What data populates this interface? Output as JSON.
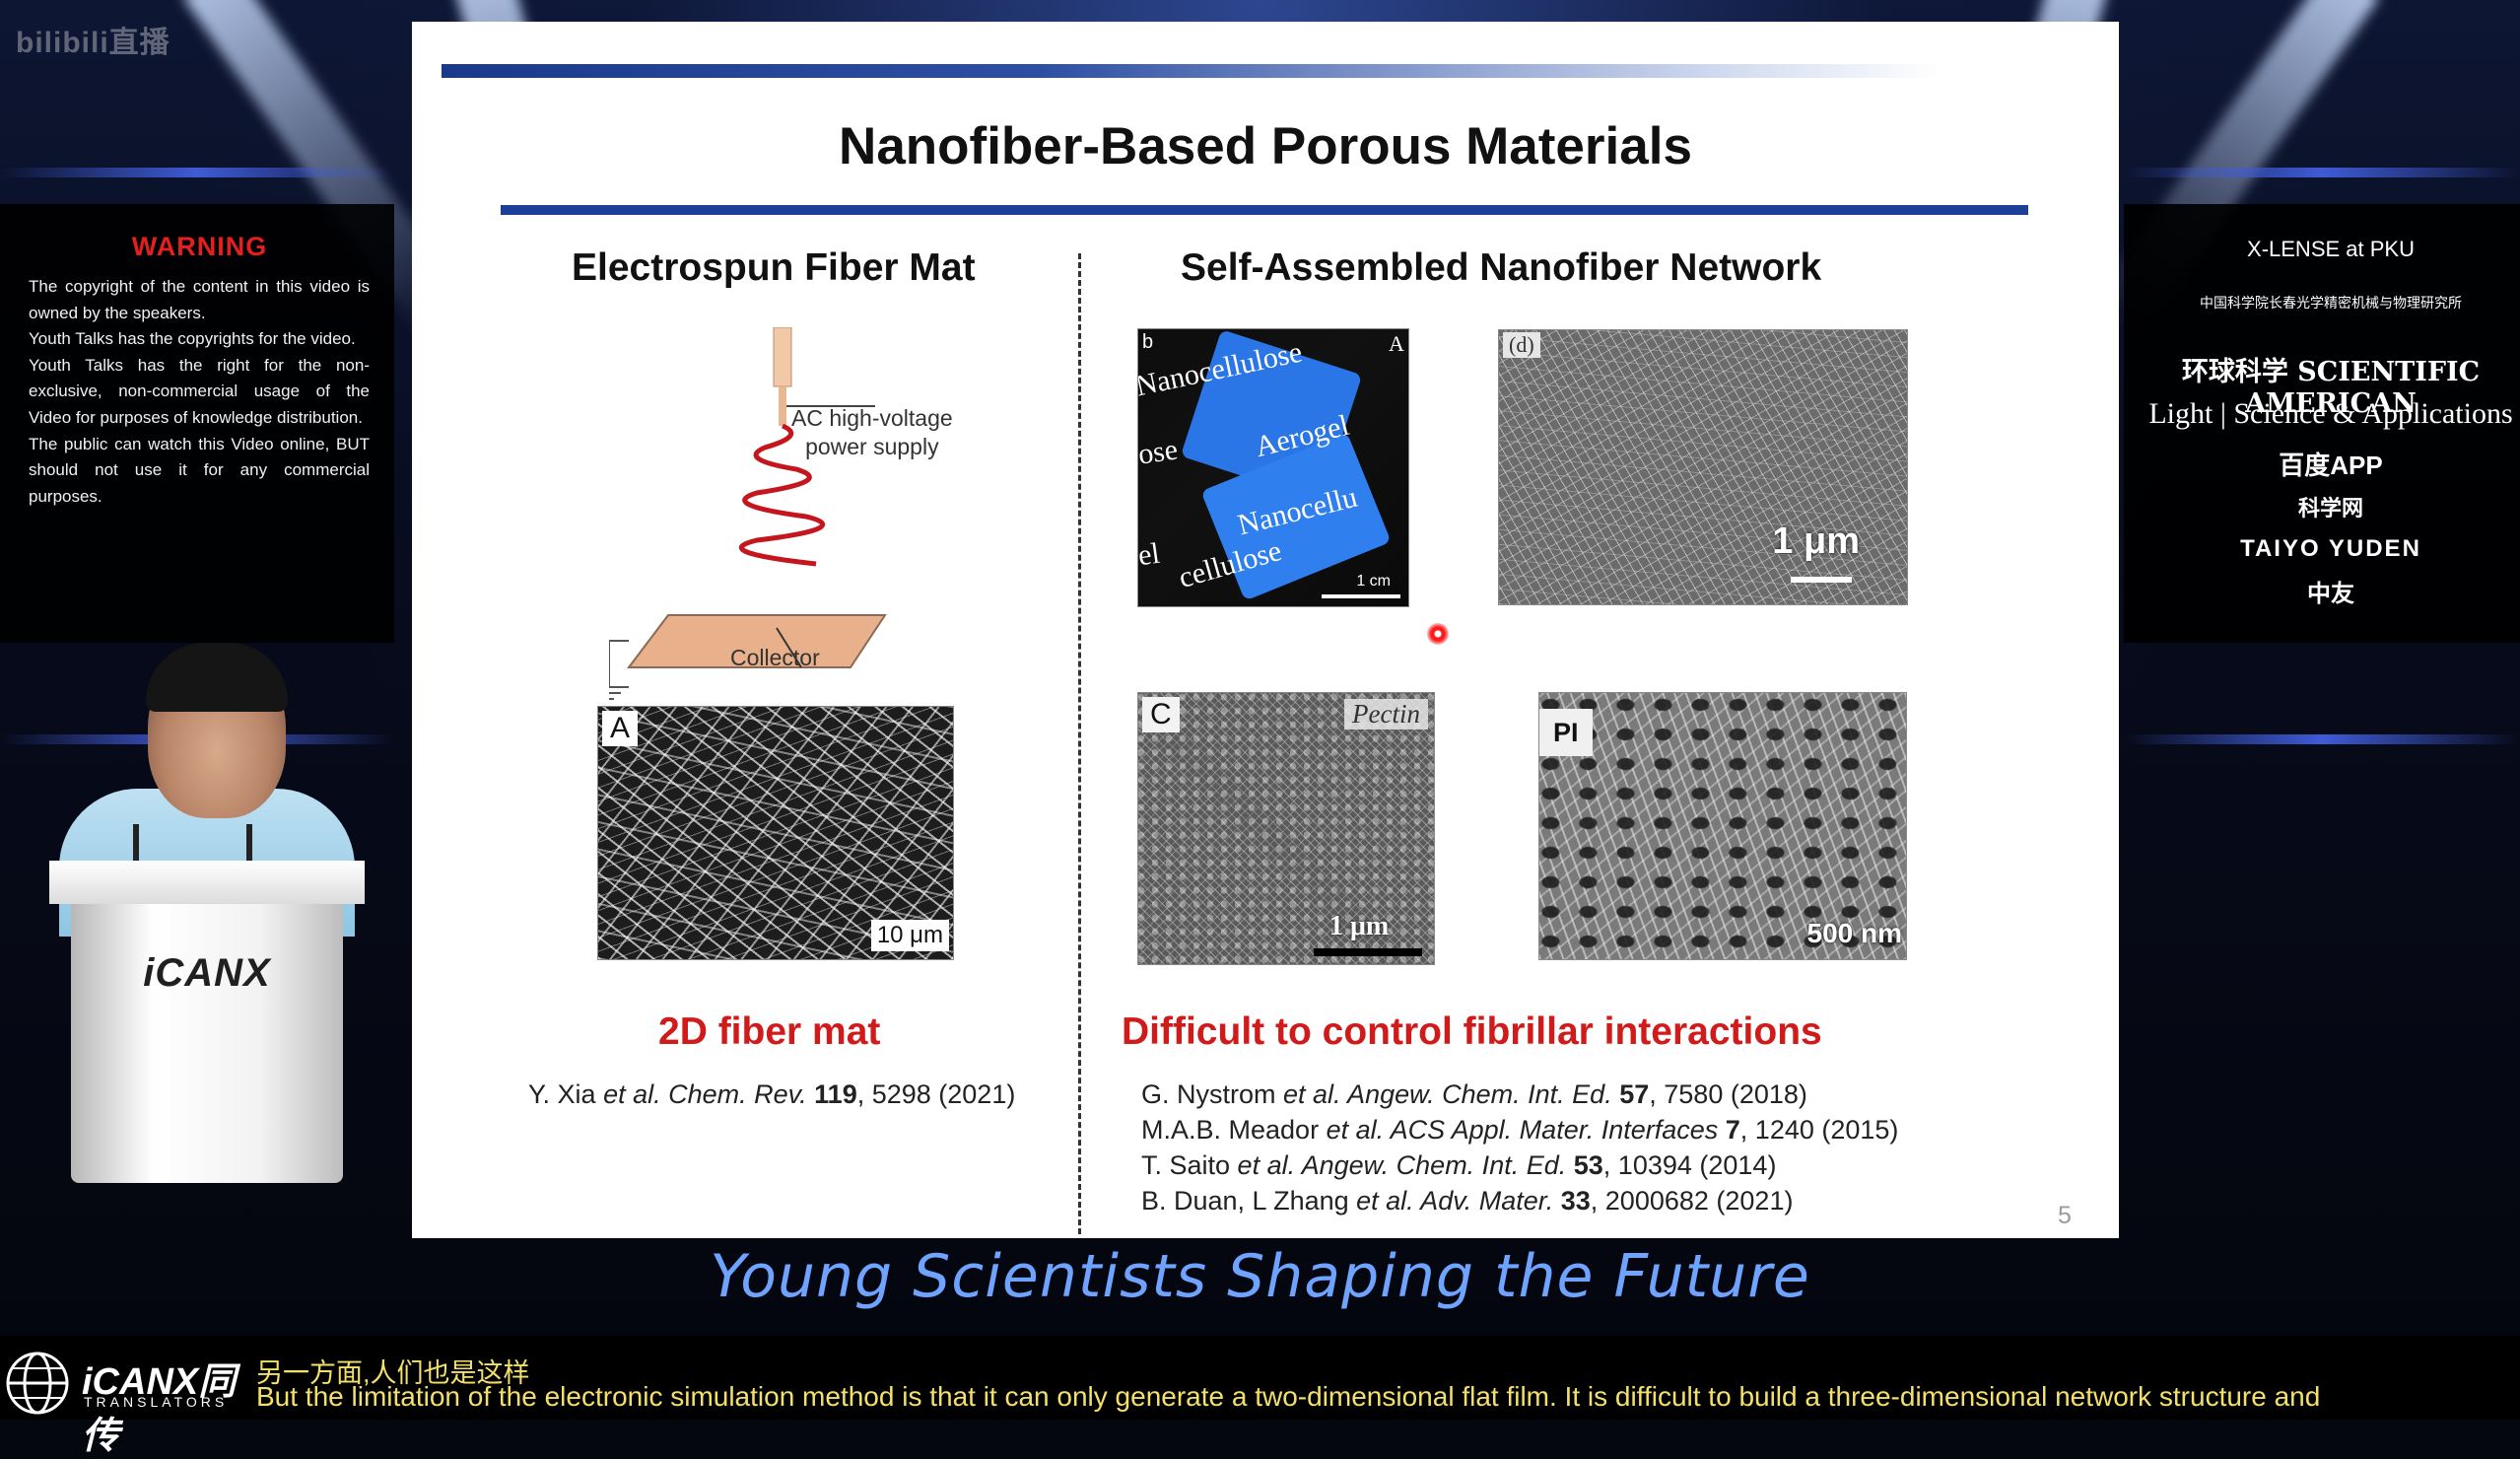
{
  "broadcast": {
    "watermark": "bilibili直播",
    "tagline": "Young Scientists Shaping the Future",
    "podium_logo": "iCANX"
  },
  "warning": {
    "title": "WARNING",
    "paragraphs": [
      "The copyright of the content in this video is owned by the speakers.",
      "Youth Talks has  the copyrights for the video.",
      "Youth Talks has the right for the non-exclusive, non-commercial  usage  of  the Video  for purposes of knowledge distribution.",
      "The public can watch this Video online, BUT should not use it for any commercial purposes."
    ]
  },
  "sponsors": [
    "X-LENSE at PKU",
    "中国科学院长春光学精密机械与物理研究所",
    "环球科学 SCIENTIFIC AMERICAN",
    "Light | Science & Applications",
    "百度APP",
    "科学网",
    "TAIYO YUDEN",
    "中友"
  ],
  "slide": {
    "title": "Nanofiber-Based Porous Materials",
    "left_heading": "Electrospun Fiber Mat",
    "right_heading": "Self-Assembled Nanofiber Network",
    "diagram": {
      "power_label_line1": "AC high-voltage",
      "power_label_line2": "power supply",
      "collector_label": "Collector"
    },
    "panels": {
      "A": {
        "tag": "A",
        "scale": "10 μm"
      },
      "b": {
        "tag": "b",
        "scale": "1 cm",
        "texts": [
          "Nanocellulose",
          "Aerogel",
          "Nanocellu",
          "cellulose",
          "ose",
          "el",
          "A"
        ]
      },
      "d": {
        "tag": "(d)",
        "scale": "1 μm"
      },
      "c": {
        "tag": "C",
        "label": "Pectin",
        "scale": "1 μm"
      },
      "PI": {
        "tag": "PI",
        "scale": "500 nm"
      }
    },
    "left_conclusion": "2D fiber mat",
    "right_conclusion": "Difficult to control fibrillar interactions",
    "left_ref": {
      "author": "Y. Xia ",
      "etal": "et al.",
      "journal": " Chem. Rev.",
      "vol": " 119",
      "rest": ", 5298 (2021)"
    },
    "right_refs": [
      {
        "author": "G. Nystrom ",
        "etal": "et al.",
        "journal": " Angew. Chem. Int. Ed.",
        "vol": " 57",
        "rest": ", 7580 (2018)"
      },
      {
        "author": "M.A.B. Meador ",
        "etal": "et al.",
        "journal": " ACS Appl. Mater. Interfaces",
        "vol": " 7",
        "rest": ", 1240 (2015)"
      },
      {
        "author": "T. Saito ",
        "etal": "et al.",
        "journal": " Angew. Chem. Int. Ed.",
        "vol": " 53",
        "rest": ", 10394 (2014)"
      },
      {
        "author": "B. Duan, L Zhang ",
        "etal": "et al.",
        "journal": " Adv. Mater.",
        "vol": "  33",
        "rest": ", 2000682 (2021)"
      }
    ],
    "page_number": "5"
  },
  "translators": {
    "brand": "iCANX同传",
    "sub": "TRANSLATORS"
  },
  "subtitles": {
    "cn": "另一方面,人们也是这样",
    "en": "But the limitation of the electronic simulation method is that it can only generate a two-dimensional flat film. It is difficult to build a three-dimensional network structure and"
  },
  "colors": {
    "accent_red": "#d11b1b",
    "title_rule": "#1d3f98",
    "subtitle": "#f3e06a",
    "tagline": "#6ea3ff"
  }
}
